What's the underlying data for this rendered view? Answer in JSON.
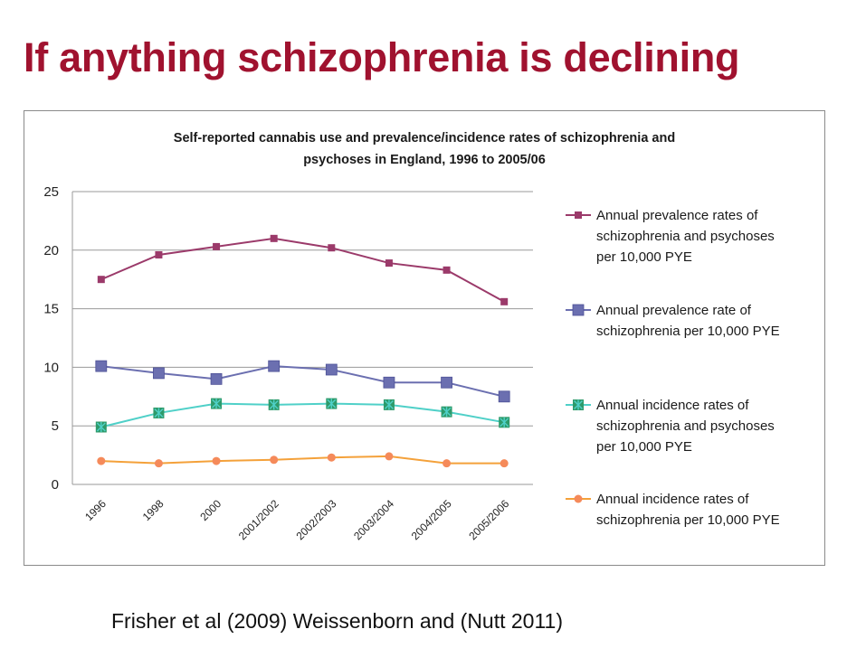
{
  "slide": {
    "title": "If anything schizophrenia is declining",
    "citation": "Frisher et al (2009)  Weissenborn and (Nutt 2011)"
  },
  "chart_data": {
    "type": "line",
    "title_lines": [
      "Self-reported cannabis use and prevalence/incidence rates of schizophrenia and",
      "psychoses in England, 1996 to 2005/06"
    ],
    "categories": [
      "1996",
      "1998",
      "2000",
      "2001/2002",
      "2002/2003",
      "2003/2004",
      "2004/2005",
      "2005/2006"
    ],
    "ylim": [
      0,
      25
    ],
    "yticks": [
      0,
      5,
      10,
      15,
      20,
      25
    ],
    "grid": true,
    "legend_position": "right",
    "series": [
      {
        "name": "Annual prevalence rates of schizophrenia and psychoses per 10,000 PYE",
        "legend_lines": [
          "Annual prevalence rates of",
          "schizophrenia and psychoses",
          "per 10,000 PYE"
        ],
        "values": [
          17.5,
          19.6,
          20.3,
          21.0,
          20.2,
          18.9,
          18.3,
          15.6
        ],
        "color": "#9b3a6a",
        "marker": "square"
      },
      {
        "name": "Annual prevalence rate of schizophrenia per 10,000 PYE",
        "legend_lines": [
          "Annual prevalence rate of",
          "schizophrenia per 10,000 PYE"
        ],
        "values": [
          10.1,
          9.5,
          9.0,
          10.1,
          9.8,
          8.7,
          8.7,
          7.5
        ],
        "color": "#6b6fb0",
        "marker": "square-large"
      },
      {
        "name": "Annual incidence rates of schizophrenia and psychoses per 10,000 PYE",
        "legend_lines": [
          "Annual incidence rates of",
          "schizophrenia and psychoses",
          "per 10,000 PYE"
        ],
        "values": [
          4.9,
          6.1,
          6.9,
          6.8,
          6.9,
          6.8,
          6.2,
          5.3
        ],
        "color": "#4fd0c8",
        "marker": "star-square",
        "marker_fill": "#2e9a6a"
      },
      {
        "name": "Annual incidence rates of schizophrenia per 10,000 PYE",
        "legend_lines": [
          "Annual incidence rates of",
          "schizophrenia per 10,000 PYE"
        ],
        "values": [
          2.0,
          1.8,
          2.0,
          2.1,
          2.3,
          2.4,
          1.8,
          1.8
        ],
        "color": "#f4a13a",
        "marker": "circle",
        "marker_fill": "#f58a5a"
      }
    ]
  }
}
